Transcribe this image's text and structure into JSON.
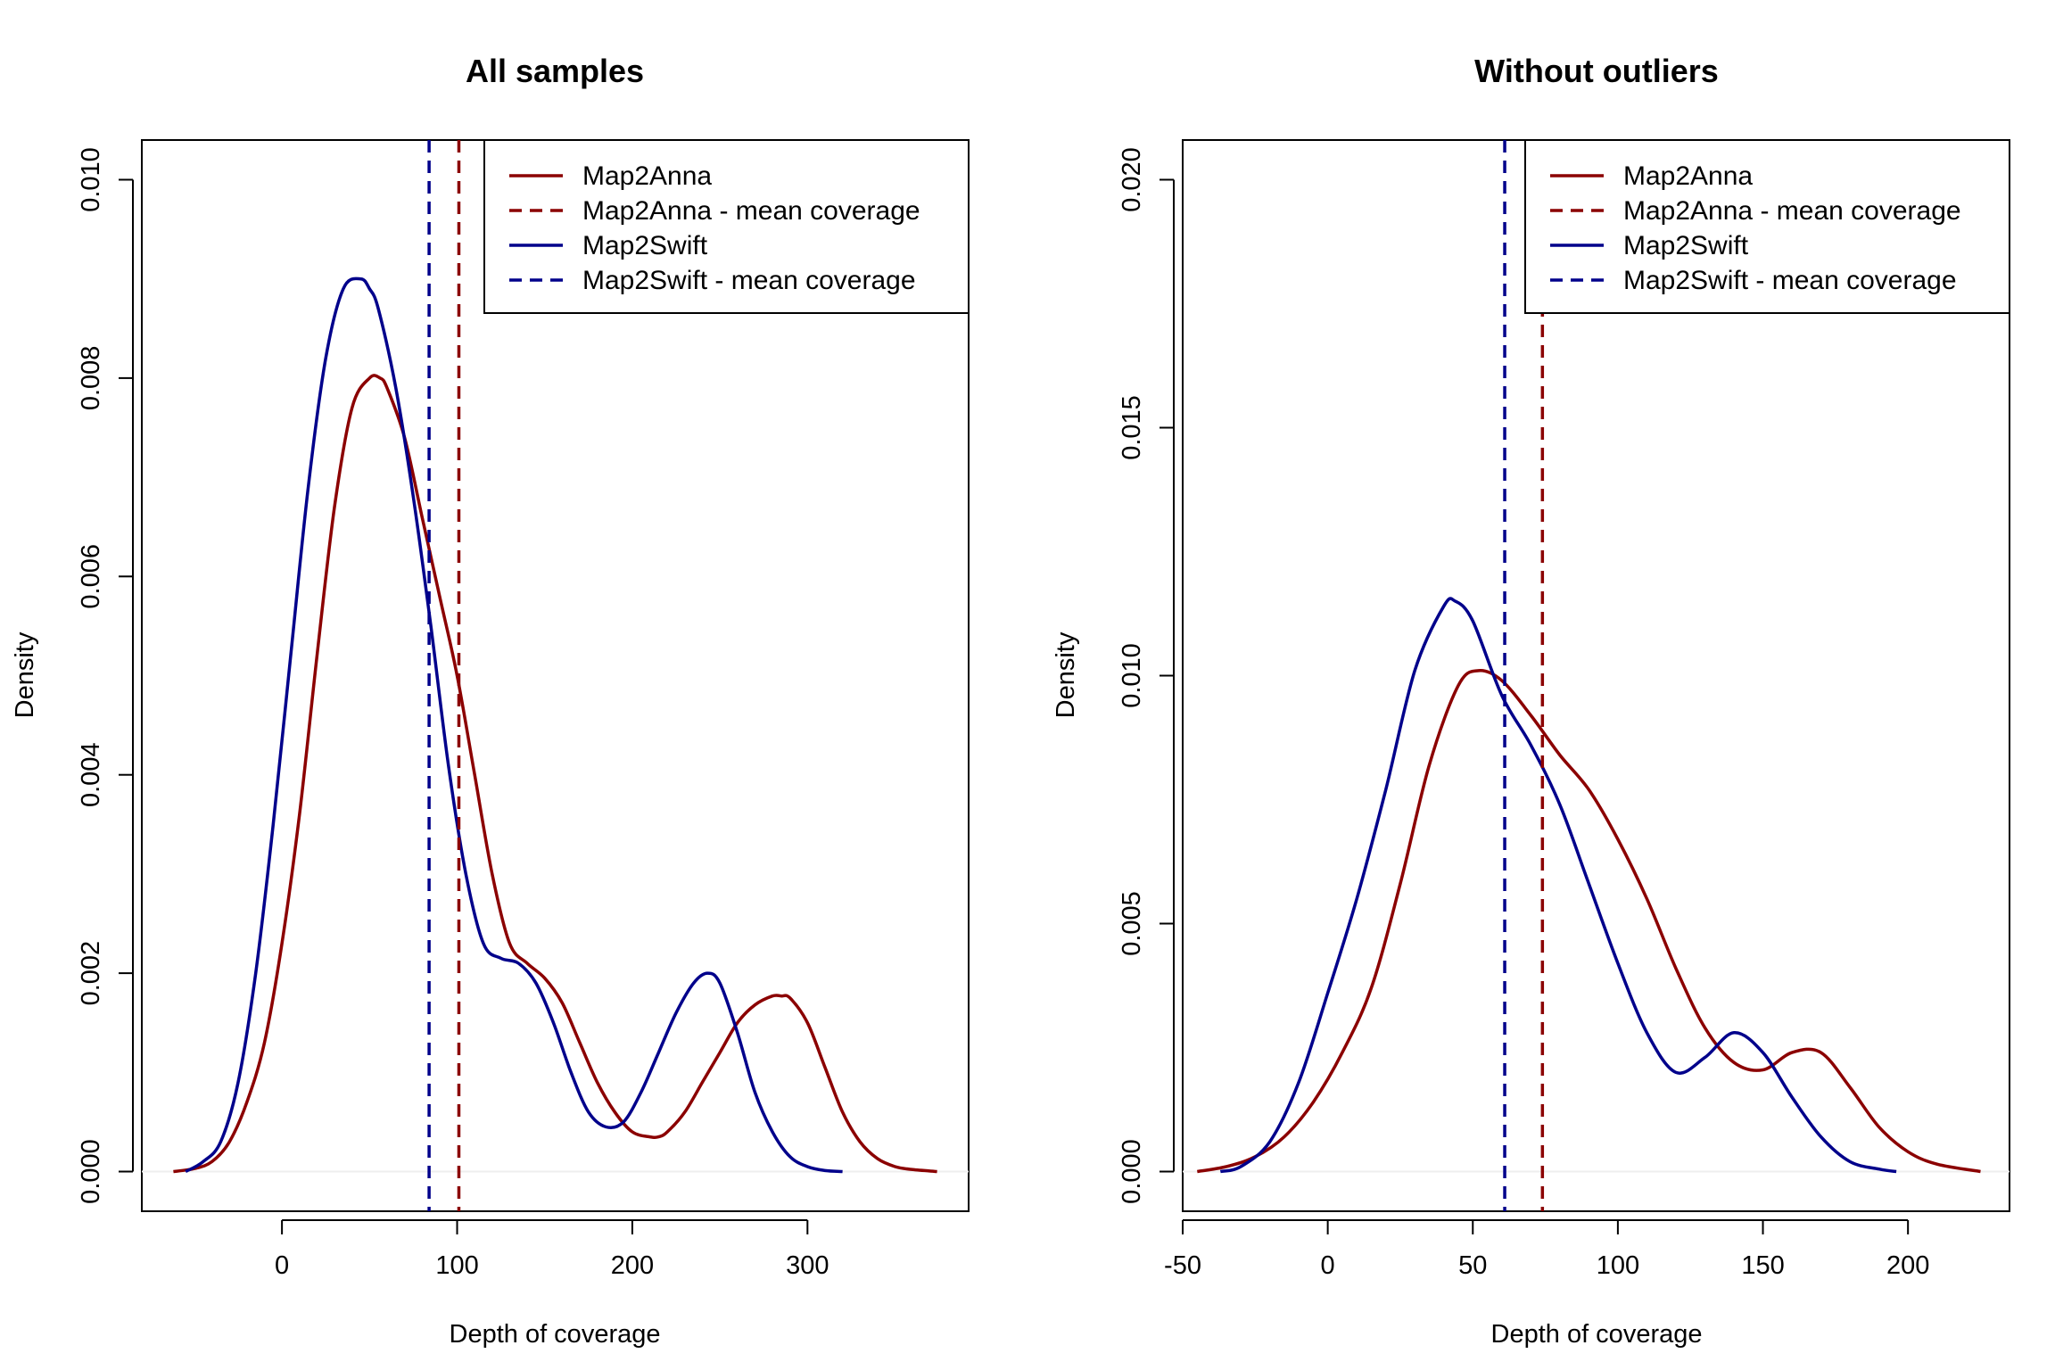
{
  "colors": {
    "anna": "#8b0000",
    "swift": "#00008b",
    "zero_line": "#eeeeee"
  },
  "chart_data": [
    {
      "type": "line",
      "title": "All samples",
      "xlabel": "Depth of coverage",
      "ylabel": "Density",
      "xlim": [
        -80,
        392
      ],
      "ylim": [
        -0.0004,
        0.0104
      ],
      "xticks": [
        0,
        100,
        200,
        300
      ],
      "xtick_labels": [
        "0",
        "100",
        "200",
        "300"
      ],
      "yticks": [
        0,
        0.002,
        0.004,
        0.006,
        0.008,
        0.01
      ],
      "ytick_labels": [
        "0.000",
        "0.002",
        "0.004",
        "0.006",
        "0.008",
        "0.010"
      ],
      "legend_position": "top-right",
      "legend": [
        {
          "label": "Map2Anna",
          "series": "anna",
          "style": "solid"
        },
        {
          "label": "Map2Anna - mean coverage",
          "series": "anna",
          "style": "dashed"
        },
        {
          "label": "Map2Swift",
          "series": "swift",
          "style": "solid"
        },
        {
          "label": "Map2Swift - mean coverage",
          "series": "swift",
          "style": "dashed"
        }
      ],
      "vlines": [
        {
          "series": "swift",
          "x": 84
        },
        {
          "series": "anna",
          "x": 101
        }
      ],
      "series": [
        {
          "name": "Map2Anna",
          "key": "anna",
          "x": [
            -62,
            -50,
            -40,
            -30,
            -20,
            -10,
            0,
            10,
            20,
            30,
            40,
            50,
            56,
            60,
            70,
            80,
            90,
            100,
            110,
            120,
            130,
            140,
            150,
            160,
            170,
            180,
            190,
            200,
            210,
            215,
            220,
            230,
            240,
            250,
            260,
            270,
            280,
            285,
            290,
            300,
            310,
            320,
            330,
            340,
            350,
            360,
            374
          ],
          "y": [
            0.0,
            3e-05,
            0.0001,
            0.0003,
            0.0007,
            0.0013,
            0.0023,
            0.0036,
            0.0052,
            0.0067,
            0.0077,
            0.008,
            0.008,
            0.0079,
            0.0074,
            0.0066,
            0.0058,
            0.005,
            0.004,
            0.003,
            0.0023,
            0.0021,
            0.00195,
            0.0017,
            0.0013,
            0.0009,
            0.0006,
            0.0004,
            0.00035,
            0.00035,
            0.0004,
            0.0006,
            0.0009,
            0.0012,
            0.0015,
            0.00168,
            0.00177,
            0.00177,
            0.00175,
            0.0015,
            0.00105,
            0.0006,
            0.0003,
            0.00013,
            5e-05,
            2e-05,
            0.0
          ]
        },
        {
          "name": "Map2Swift",
          "key": "swift",
          "x": [
            -55,
            -45,
            -35,
            -25,
            -15,
            -5,
            5,
            15,
            25,
            35,
            45,
            50,
            55,
            65,
            75,
            85,
            95,
            105,
            115,
            125,
            135,
            145,
            155,
            165,
            175,
            185,
            195,
            205,
            215,
            225,
            235,
            243,
            250,
            260,
            270,
            280,
            290,
            300,
            310,
            320
          ],
          "y": [
            0.0,
            0.0001,
            0.0003,
            0.0009,
            0.002,
            0.0035,
            0.0052,
            0.0069,
            0.0082,
            0.0089,
            0.009,
            0.0089,
            0.0087,
            0.0079,
            0.0068,
            0.0055,
            0.0041,
            0.003,
            0.0023,
            0.00215,
            0.0021,
            0.0019,
            0.0015,
            0.001,
            0.0006,
            0.00045,
            0.0005,
            0.0008,
            0.0012,
            0.0016,
            0.0019,
            0.002,
            0.0019,
            0.0014,
            0.0008,
            0.0004,
            0.00015,
            5e-05,
            1e-05,
            0.0
          ]
        }
      ]
    },
    {
      "type": "line",
      "title": "Without outliers",
      "xlabel": "Depth of coverage",
      "ylabel": "Density",
      "xlim": [
        -50,
        235
      ],
      "ylim": [
        -0.0008,
        0.0208
      ],
      "xticks": [
        -50,
        0,
        50,
        100,
        150,
        200
      ],
      "xtick_labels": [
        "-50",
        "0",
        "50",
        "100",
        "150",
        "200"
      ],
      "yticks": [
        0,
        0.005,
        0.01,
        0.015,
        0.02
      ],
      "ytick_labels": [
        "0.000",
        "0.005",
        "0.010",
        "0.015",
        "0.020"
      ],
      "legend_position": "top-right",
      "legend": [
        {
          "label": "Map2Anna",
          "series": "anna",
          "style": "solid"
        },
        {
          "label": "Map2Anna - mean coverage",
          "series": "anna",
          "style": "dashed"
        },
        {
          "label": "Map2Swift",
          "series": "swift",
          "style": "solid"
        },
        {
          "label": "Map2Swift - mean coverage",
          "series": "swift",
          "style": "dashed"
        }
      ],
      "vlines": [
        {
          "series": "swift",
          "x": 61
        },
        {
          "series": "anna",
          "x": 74
        }
      ],
      "series": [
        {
          "name": "Map2Anna",
          "key": "anna",
          "x": [
            -45,
            -35,
            -25,
            -15,
            -5,
            5,
            15,
            25,
            35,
            45,
            52,
            60,
            70,
            80,
            90,
            100,
            110,
            120,
            130,
            140,
            150,
            160,
            170,
            180,
            190,
            200,
            210,
            225
          ],
          "y": [
            0.0,
            0.0001,
            0.0003,
            0.0007,
            0.0014,
            0.0024,
            0.0037,
            0.0058,
            0.0082,
            0.0098,
            0.0101,
            0.0099,
            0.0092,
            0.0084,
            0.0077,
            0.0067,
            0.0055,
            0.0041,
            0.0029,
            0.0022,
            0.00205,
            0.0024,
            0.0024,
            0.0017,
            0.0009,
            0.0004,
            0.00015,
            0.0
          ]
        },
        {
          "name": "Map2Swift",
          "key": "swift",
          "x": [
            -37,
            -30,
            -20,
            -10,
            0,
            10,
            20,
            30,
            40,
            44,
            50,
            60,
            70,
            80,
            90,
            100,
            110,
            120,
            130,
            140,
            150,
            160,
            170,
            180,
            190,
            196
          ],
          "y": [
            0.0,
            0.0001,
            0.0006,
            0.0018,
            0.0036,
            0.0055,
            0.0077,
            0.0101,
            0.0114,
            0.0115,
            0.0111,
            0.0096,
            0.0086,
            0.0074,
            0.0058,
            0.0042,
            0.0028,
            0.002,
            0.0023,
            0.0028,
            0.0024,
            0.0015,
            0.0007,
            0.0002,
            5e-05,
            0.0
          ]
        }
      ]
    }
  ]
}
